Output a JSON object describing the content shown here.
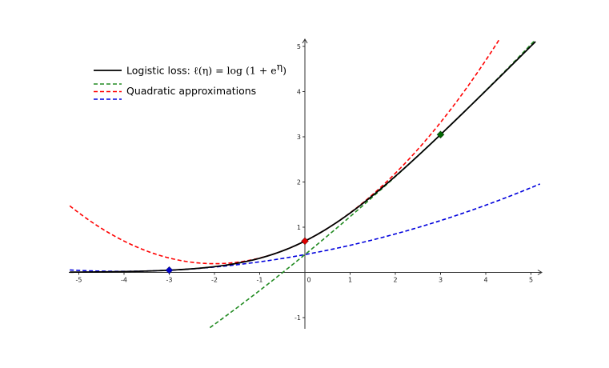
{
  "chart_data": {
    "type": "line",
    "title": "",
    "xlabel": "",
    "ylabel": "",
    "xlim": [
      -5.2,
      5.25
    ],
    "ylim": [
      -1.2,
      5.2
    ],
    "grid": false,
    "legend_position": "top-left",
    "x_ticks": [
      -5,
      -4,
      -3,
      -2,
      -1,
      0,
      1,
      2,
      3,
      4,
      5
    ],
    "y_ticks": [
      -1,
      1,
      2,
      3,
      4,
      5
    ],
    "x_tick_labels": [
      "-5",
      "-4",
      "-3",
      "-2",
      "-1",
      "0",
      "1",
      "2",
      "3",
      "4",
      "5"
    ],
    "y_tick_labels": [
      "-1",
      "1",
      "2",
      "3",
      "4",
      "5"
    ],
    "legend": [
      {
        "label": "Logistic loss: ",
        "math": "ℓ(η) = log (1 + e",
        "math_sup": "η",
        "math_end": ")",
        "color": "#000000",
        "dash": false
      },
      {
        "label": "Quadratic approximations",
        "color": "#228b22",
        "dash": true
      },
      {
        "label": "",
        "color": "#ff0000",
        "dash": true
      },
      {
        "label": "",
        "color": "#0000dd",
        "dash": true
      }
    ],
    "series": [
      {
        "function": "log(1+exp(x))",
        "color": "#000000",
        "x": [
          -5.2,
          -4,
          -3,
          -2,
          -1,
          0,
          1,
          2,
          3,
          4,
          5.1
        ],
        "y": [
          0.005,
          0.018,
          0.049,
          0.127,
          0.313,
          0.693,
          1.313,
          2.127,
          3.049,
          4.018,
          5.106
        ]
      },
      {
        "expansion_point": 3,
        "color": "#228b22",
        "x": [
          -2.1,
          -1,
          0,
          1,
          2,
          3,
          4,
          5.1
        ],
        "y": [
          -1.21,
          -0.43,
          0.44,
          1.21,
          2.12,
          3.05,
          4.02,
          5.13
        ]
      },
      {
        "expansion_point": 0,
        "color": "#ff0000",
        "x": [
          -5.2,
          -4,
          -3,
          -2,
          -1,
          0,
          1,
          2,
          3,
          4,
          4.3
        ],
        "y": [
          1.47,
          0.69,
          0.19,
          0.19,
          0.32,
          0.69,
          1.32,
          2.19,
          3.32,
          4.69,
          5.17
        ]
      },
      {
        "expansion_point": -3,
        "color": "#0000dd",
        "x": [
          -5.2,
          -4,
          -3,
          -2,
          -1,
          0,
          1,
          2,
          3,
          4,
          5.2
        ],
        "y": [
          0.04,
          0.03,
          0.05,
          0.11,
          0.21,
          0.36,
          0.55,
          0.78,
          1.06,
          1.38,
          1.84
        ]
      }
    ],
    "markers": [
      {
        "x": -3,
        "y": 0.049,
        "color": "#0000cc"
      },
      {
        "x": 0,
        "y": 0.693,
        "color": "#dd0000"
      },
      {
        "x": 3,
        "y": 3.049,
        "color": "#006600"
      }
    ]
  }
}
